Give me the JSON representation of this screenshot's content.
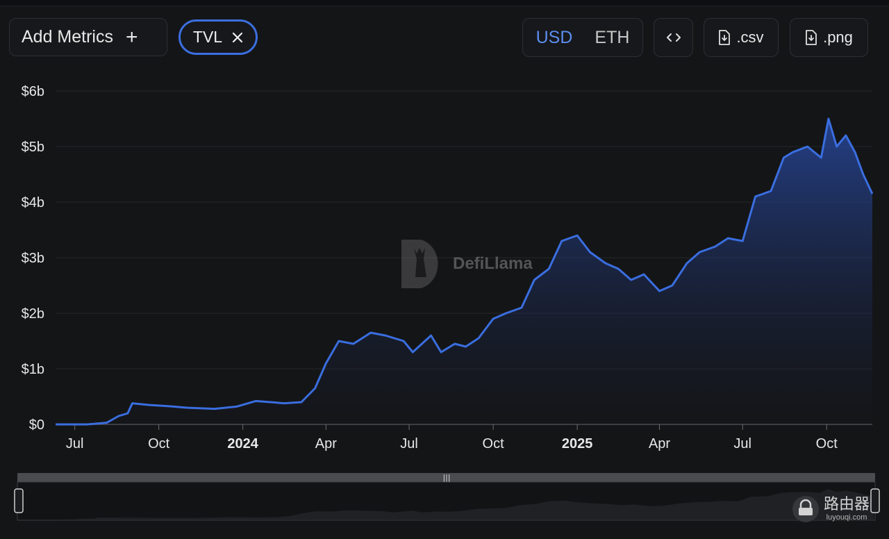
{
  "toolbar": {
    "add_metrics_label": "Add Metrics",
    "add_icon": "plus-icon",
    "chip_label": "TVL",
    "chip_close_icon": "close-icon",
    "currency_options": [
      "USD",
      "ETH"
    ],
    "currency_selected": "USD",
    "embed_icon": "code-icon",
    "csv_label": ".csv",
    "png_label": ".png",
    "download_icon": "file-download-icon"
  },
  "watermark": {
    "text": "DefiLlama",
    "icon": "llama-logo-icon"
  },
  "brand": {
    "main": "路由器",
    "sub": "luyouqi.com",
    "icon": "router-logo-icon"
  },
  "colors": {
    "line": "#3a6ee0",
    "accent": "#5b8def",
    "background": "#141517"
  },
  "chart_data": {
    "type": "area",
    "title": "",
    "xlabel": "",
    "ylabel": "",
    "ylim": [
      0,
      6
    ],
    "y_unit": "billion USD",
    "y_ticks": [
      0,
      1,
      2,
      3,
      4,
      5,
      6
    ],
    "y_tick_labels": [
      "$0",
      "$1b",
      "$2b",
      "$3b",
      "$4b",
      "$5b",
      "$6b"
    ],
    "x_range": [
      "2023-06-10",
      "2025-11-20"
    ],
    "x_ticks": [
      {
        "date": "2023-07-01",
        "label": "Jul",
        "bold": false
      },
      {
        "date": "2023-10-01",
        "label": "Oct",
        "bold": false
      },
      {
        "date": "2024-01-01",
        "label": "2024",
        "bold": true
      },
      {
        "date": "2024-04-01",
        "label": "Apr",
        "bold": false
      },
      {
        "date": "2024-07-01",
        "label": "Jul",
        "bold": false
      },
      {
        "date": "2024-10-01",
        "label": "Oct",
        "bold": false
      },
      {
        "date": "2025-01-01",
        "label": "2025",
        "bold": true
      },
      {
        "date": "2025-04-01",
        "label": "Apr",
        "bold": false
      },
      {
        "date": "2025-07-01",
        "label": "Jul",
        "bold": false
      },
      {
        "date": "2025-10-01",
        "label": "Oct",
        "bold": false
      }
    ],
    "grid": true,
    "legend": "none",
    "series": [
      {
        "x": [
          "2023-06-10",
          "2023-07-15",
          "2023-08-05",
          "2023-08-18",
          "2023-08-28",
          "2023-09-02",
          "2023-09-20",
          "2023-10-10",
          "2023-11-01",
          "2023-12-01",
          "2023-12-25",
          "2024-01-15",
          "2024-02-01",
          "2024-02-15",
          "2024-03-05",
          "2024-03-20",
          "2024-04-01",
          "2024-04-15",
          "2024-05-01",
          "2024-05-20",
          "2024-06-05",
          "2024-06-25",
          "2024-07-05",
          "2024-07-25",
          "2024-08-05",
          "2024-08-20",
          "2024-09-01",
          "2024-09-15",
          "2024-10-01",
          "2024-10-15",
          "2024-11-01",
          "2024-11-15",
          "2024-12-01",
          "2024-12-15",
          "2025-01-01",
          "2025-01-15",
          "2025-02-01",
          "2025-02-15",
          "2025-03-01",
          "2025-03-15",
          "2025-04-01",
          "2025-04-15",
          "2025-05-01",
          "2025-05-15",
          "2025-06-01",
          "2025-06-15",
          "2025-07-01",
          "2025-07-15",
          "2025-08-01",
          "2025-08-15",
          "2025-08-25",
          "2025-09-10",
          "2025-09-25",
          "2025-10-03",
          "2025-10-12",
          "2025-10-22",
          "2025-11-01",
          "2025-11-10",
          "2025-11-20"
        ],
        "values": [
          0.0,
          0.0,
          0.03,
          0.15,
          0.2,
          0.38,
          0.35,
          0.33,
          0.3,
          0.28,
          0.32,
          0.42,
          0.4,
          0.38,
          0.4,
          0.65,
          1.1,
          1.5,
          1.45,
          1.65,
          1.6,
          1.5,
          1.3,
          1.6,
          1.3,
          1.45,
          1.4,
          1.55,
          1.9,
          2.0,
          2.1,
          2.6,
          2.8,
          3.3,
          3.4,
          3.1,
          2.9,
          2.8,
          2.6,
          2.7,
          2.4,
          2.5,
          2.9,
          3.1,
          3.2,
          3.35,
          3.3,
          4.1,
          4.2,
          4.8,
          4.9,
          5.0,
          4.8,
          5.5,
          5.0,
          5.2,
          4.9,
          4.5,
          4.15
        ]
      }
    ]
  }
}
